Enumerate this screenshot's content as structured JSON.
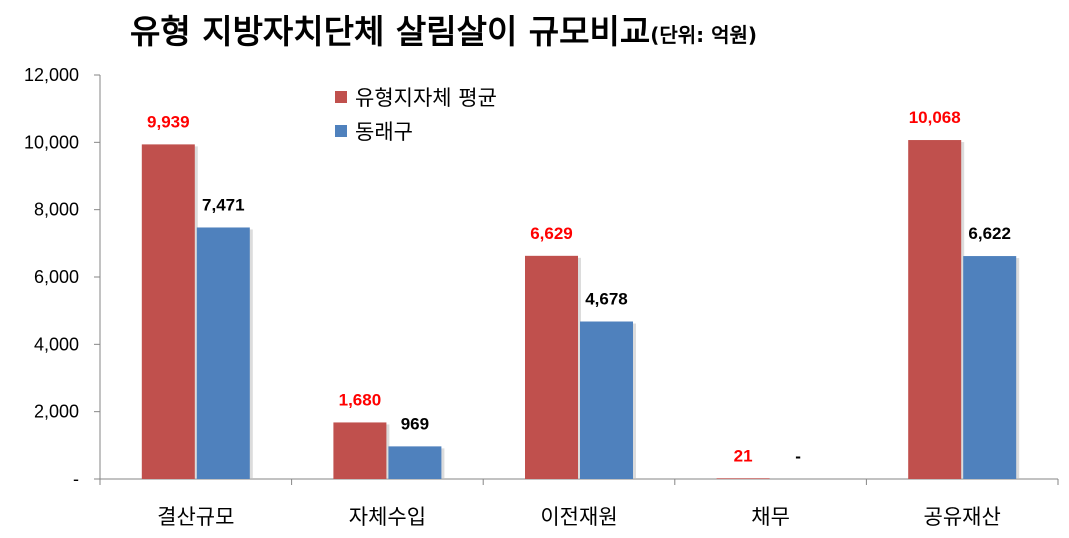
{
  "chart_data": {
    "type": "bar",
    "title": "유형 지방자치단체 살림살이 규모비교",
    "unit_note": "(단위: 억원)",
    "categories": [
      "결산규모",
      "자체수입",
      "이전재원",
      "채무",
      "공유재산"
    ],
    "series": [
      {
        "name": "유형지자체 평균",
        "color": "#C0504D",
        "label_color": "#FF0000",
        "values": [
          9939,
          1680,
          6629,
          21,
          10068
        ],
        "labels": [
          "9,939",
          "1,680",
          "6,629",
          "21",
          "10,068"
        ]
      },
      {
        "name": "동래구",
        "color": "#4F81BD",
        "label_color": "#000000",
        "values": [
          7471,
          969,
          4678,
          0,
          6622
        ],
        "labels": [
          "7,471",
          "969",
          "4,678",
          "-",
          "6,622"
        ]
      }
    ],
    "ylim": [
      0,
      12000
    ],
    "yticks": [
      0,
      2000,
      4000,
      6000,
      8000,
      10000,
      12000
    ],
    "ytick_labels": [
      "-",
      "2,000",
      "4,000",
      "6,000",
      "8,000",
      "10,000",
      "12,000"
    ],
    "grid": false,
    "legend_position": "top-left"
  }
}
